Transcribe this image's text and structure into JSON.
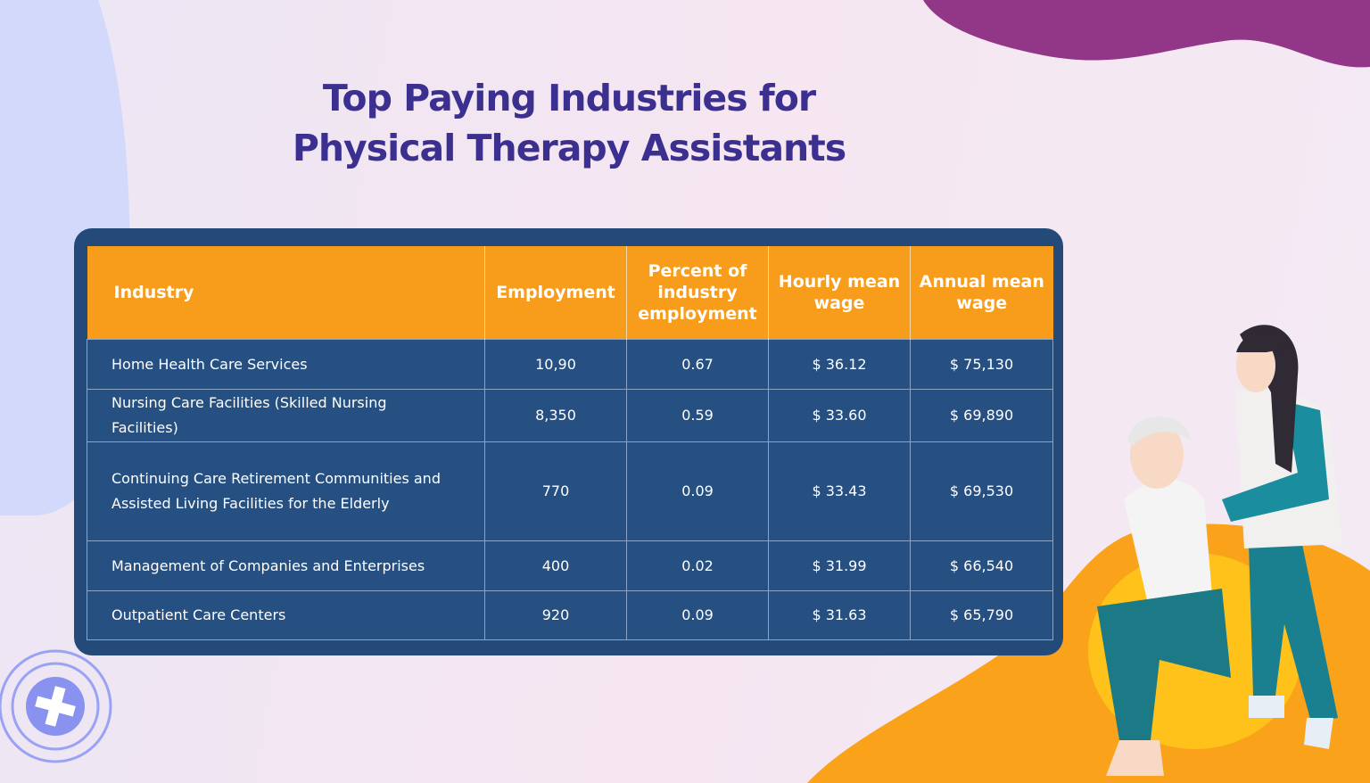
{
  "title": {
    "lines": [
      "Top Paying Industries for",
      "Physical Therapy Assistants"
    ]
  },
  "table": {
    "header": [
      "Industry",
      "Employment",
      "Percent of industry employment",
      "Hourly mean wage",
      "Annual mean wage"
    ],
    "rows": [
      [
        "Home Health Care Services",
        "10,90",
        "0.67",
        "$ 36.12",
        "$ 75,130"
      ],
      [
        "Nursing Care Facilities (Skilled Nursing Facilities)",
        "8,350",
        "0.59",
        "$ 33.60",
        "$ 69,890"
      ],
      [
        "Continuing Care Retirement Communities and Assisted Living Facilities for the Elderly",
        "770",
        "0.09",
        "$ 33.43",
        "$ 69,530"
      ],
      [
        "Management of Companies and Enterprises",
        "400",
        "0.02",
        "$ 31.99",
        "$ 66,540"
      ],
      [
        "Outpatient Care Centers",
        "920",
        "0.09",
        "$ 31.63",
        "$ 65,790"
      ]
    ]
  }
}
